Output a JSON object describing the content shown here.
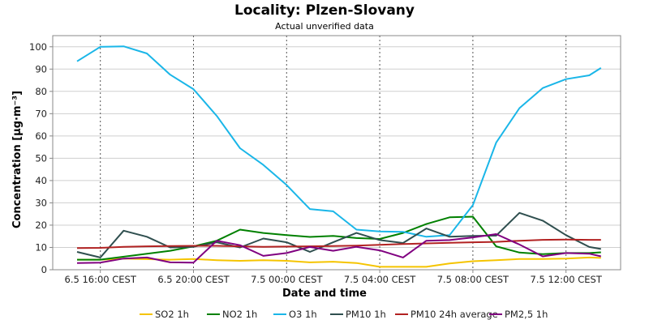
{
  "chart_data": {
    "type": "line",
    "title": "Locality: Plzen-Slovany",
    "subtitle": "Actual unverified data",
    "xlabel": "Date and time",
    "ylabel": "Concentration [µg·m⁻³]",
    "ylim": [
      0,
      105
    ],
    "yticks": [
      0,
      10,
      20,
      30,
      40,
      50,
      60,
      70,
      80,
      90,
      100
    ],
    "xrange": [
      0,
      22.5
    ],
    "xticks": [
      {
        "x": 1,
        "label": "6.5 16:00 CEST"
      },
      {
        "x": 5,
        "label": "6.5 20:00 CEST"
      },
      {
        "x": 9,
        "label": "7.5 00:00 CEST"
      },
      {
        "x": 13,
        "label": "7.5 04:00 CEST"
      },
      {
        "x": 17,
        "label": "7.5 08:00 CEST"
      },
      {
        "x": 21,
        "label": "7.5 12:00 CEST"
      }
    ],
    "grid": true,
    "legend_position": "bottom",
    "series": [
      {
        "name": "SO2 1h",
        "color": "#f5c400",
        "points": [
          [
            0,
            4.5
          ],
          [
            1,
            4.5
          ],
          [
            2,
            5
          ],
          [
            4,
            4.5
          ],
          [
            5,
            4.8
          ],
          [
            6,
            4.3
          ],
          [
            7,
            4
          ],
          [
            8,
            4.3
          ],
          [
            9,
            4
          ],
          [
            10,
            3.3
          ],
          [
            11,
            3.6
          ],
          [
            12,
            3
          ],
          [
            13,
            1.3
          ],
          [
            14,
            1.3
          ],
          [
            15,
            1.3
          ],
          [
            16,
            2.8
          ],
          [
            17,
            3.8
          ],
          [
            18,
            4.3
          ],
          [
            19,
            4.8
          ],
          [
            20,
            4.8
          ],
          [
            21,
            5
          ],
          [
            22,
            5.5
          ],
          [
            22.5,
            5.3
          ]
        ]
      },
      {
        "name": "NO2 1h",
        "color": "#008000",
        "points": [
          [
            0,
            4.5
          ],
          [
            1,
            4.5
          ],
          [
            4,
            8.5
          ],
          [
            5,
            10.5
          ],
          [
            6,
            13
          ],
          [
            7,
            18
          ],
          [
            8,
            16.5
          ],
          [
            9,
            15.5
          ],
          [
            10,
            14.7
          ],
          [
            11,
            15.2
          ],
          [
            12,
            14.2
          ],
          [
            13,
            13.8
          ],
          [
            14,
            16.5
          ],
          [
            15,
            20.5
          ],
          [
            16,
            23.5
          ],
          [
            17,
            23.8
          ],
          [
            18,
            10.5
          ],
          [
            19,
            7.7
          ],
          [
            20,
            7
          ],
          [
            21,
            7.5
          ],
          [
            22,
            7.5
          ],
          [
            22.5,
            7.8
          ]
        ]
      },
      {
        "name": "O3 1h",
        "color": "#1ab6e8",
        "points": [
          [
            0,
            93.5
          ],
          [
            1,
            100
          ],
          [
            2,
            100.2
          ],
          [
            3,
            97
          ],
          [
            4,
            87.5
          ],
          [
            5,
            81
          ],
          [
            6,
            69
          ],
          [
            7,
            54.5
          ],
          [
            8,
            47
          ],
          [
            9,
            38
          ],
          [
            10,
            27.2
          ],
          [
            11,
            26.2
          ],
          [
            12,
            18
          ],
          [
            13,
            17.2
          ],
          [
            14,
            17
          ],
          [
            15,
            14.8
          ],
          [
            16,
            15.5
          ],
          [
            17,
            29
          ],
          [
            18,
            57
          ],
          [
            19,
            72.5
          ],
          [
            20,
            81.5
          ],
          [
            21,
            85.5
          ],
          [
            22,
            87.2
          ],
          [
            22.5,
            90.5
          ]
        ]
      },
      {
        "name": "PM10 1h",
        "color": "#2f4f4f",
        "points": [
          [
            0,
            8
          ],
          [
            1,
            5.5
          ],
          [
            2,
            17.5
          ],
          [
            3,
            14.8
          ],
          [
            4,
            10
          ],
          [
            5,
            10.3
          ],
          [
            6,
            12.3
          ],
          [
            7,
            10
          ],
          [
            8,
            14
          ],
          [
            9,
            12.3
          ],
          [
            10,
            8
          ],
          [
            11,
            12.3
          ],
          [
            12,
            16.5
          ],
          [
            13,
            13.3
          ],
          [
            14,
            12
          ],
          [
            15,
            18.5
          ],
          [
            16,
            14.8
          ],
          [
            17,
            15.2
          ],
          [
            18,
            15.3
          ],
          [
            19,
            25.5
          ],
          [
            20,
            22
          ],
          [
            21,
            15.5
          ],
          [
            22,
            10.2
          ],
          [
            22.5,
            9.3
          ]
        ]
      },
      {
        "name": "PM10 24h average",
        "color": "#b22222",
        "points": [
          [
            0,
            9.7
          ],
          [
            1,
            9.8
          ],
          [
            2,
            10.3
          ],
          [
            3,
            10.5
          ],
          [
            4,
            10.6
          ],
          [
            5,
            10.7
          ],
          [
            6,
            10.7
          ],
          [
            7,
            10.5
          ],
          [
            8,
            10.3
          ],
          [
            9,
            10.4
          ],
          [
            10,
            10.5
          ],
          [
            11,
            10.6
          ],
          [
            12,
            10.8
          ],
          [
            13,
            11.2
          ],
          [
            14,
            11.5
          ],
          [
            15,
            11.8
          ],
          [
            16,
            12.1
          ],
          [
            17,
            12.3
          ],
          [
            18,
            12.5
          ],
          [
            19,
            13
          ],
          [
            20,
            13.4
          ],
          [
            21,
            13.5
          ],
          [
            22,
            13.4
          ],
          [
            22.5,
            13.4
          ]
        ]
      },
      {
        "name": "PM2,5 1h",
        "color": "#800080",
        "points": [
          [
            0,
            3
          ],
          [
            1,
            3.2
          ],
          [
            2,
            5
          ],
          [
            3,
            5.5
          ],
          [
            4,
            3.3
          ],
          [
            5,
            3.2
          ],
          [
            6,
            13
          ],
          [
            7,
            11
          ],
          [
            8,
            6.2
          ],
          [
            9,
            7.5
          ],
          [
            10,
            10.2
          ],
          [
            11,
            8.5
          ],
          [
            12,
            10.3
          ],
          [
            13,
            8.7
          ],
          [
            14,
            5.5
          ],
          [
            15,
            13
          ],
          [
            16,
            13.3
          ],
          [
            17,
            14.5
          ],
          [
            18,
            16
          ],
          [
            19,
            11.3
          ],
          [
            20,
            6
          ],
          [
            21,
            7.5
          ],
          [
            22,
            7.2
          ],
          [
            22.5,
            6
          ]
        ]
      }
    ]
  }
}
